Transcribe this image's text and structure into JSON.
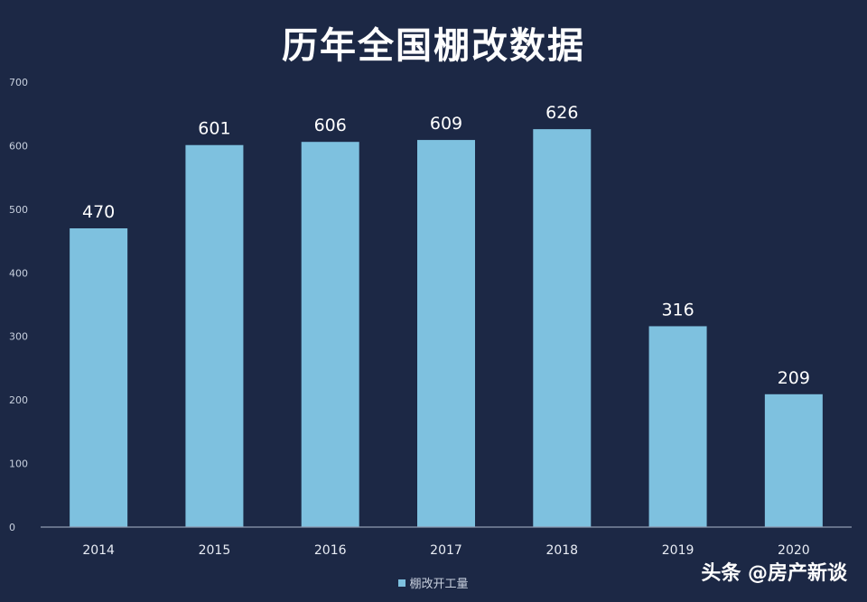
{
  "chart_data": {
    "type": "bar",
    "title": "历年全国棚改数据",
    "categories": [
      "2014",
      "2015",
      "2016",
      "2017",
      "2018",
      "2019",
      "2020"
    ],
    "series": [
      {
        "name": "棚改开工量",
        "values": [
          470,
          601,
          606,
          609,
          626,
          316,
          209
        ]
      }
    ],
    "ylim": [
      0,
      700
    ],
    "yticks": [
      "0",
      "100",
      "200",
      "300",
      "400",
      "500",
      "600",
      "700"
    ],
    "xlabel": "",
    "ylabel": "",
    "grid": false,
    "legend": "bottom",
    "bar_color": "#7ec1df",
    "background_color": "#1c2845"
  },
  "watermark": "头条 @房产新谈"
}
